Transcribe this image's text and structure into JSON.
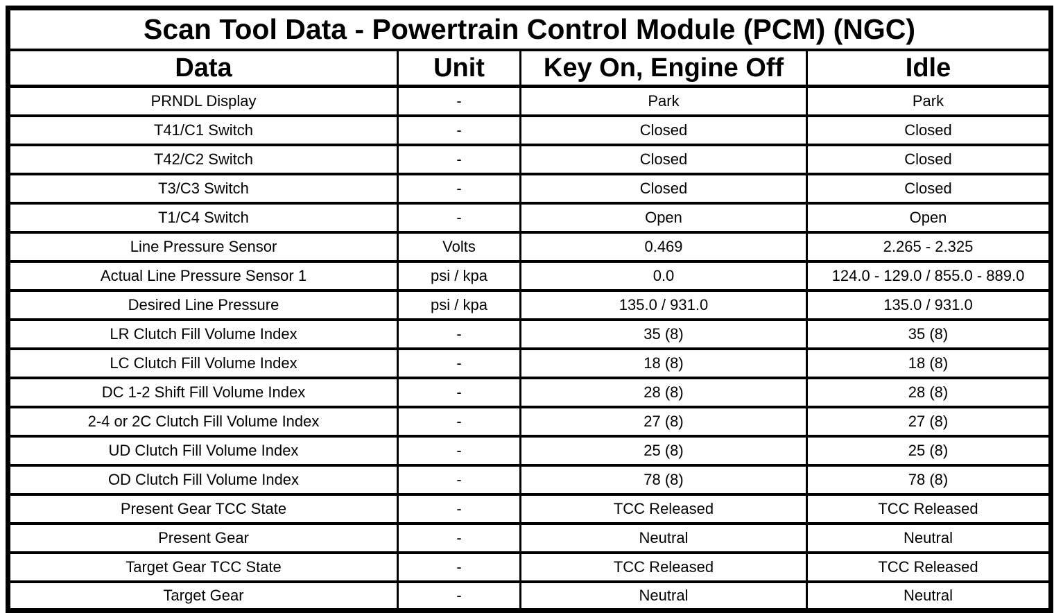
{
  "title": "Scan Tool Data - Powertrain Control Module (PCM) (NGC)",
  "table": {
    "columns": [
      "Data",
      "Unit",
      "Key On, Engine Off",
      "Idle"
    ],
    "rows": [
      {
        "data": "PRNDL Display",
        "unit": "-",
        "key_on_engine_off": "Park",
        "idle": "Park"
      },
      {
        "data": "T41/C1 Switch",
        "unit": "-",
        "key_on_engine_off": "Closed",
        "idle": "Closed"
      },
      {
        "data": "T42/C2 Switch",
        "unit": "-",
        "key_on_engine_off": "Closed",
        "idle": "Closed"
      },
      {
        "data": "T3/C3 Switch",
        "unit": "-",
        "key_on_engine_off": "Closed",
        "idle": "Closed"
      },
      {
        "data": "T1/C4 Switch",
        "unit": "-",
        "key_on_engine_off": "Open",
        "idle": "Open"
      },
      {
        "data": "Line Pressure Sensor",
        "unit": "Volts",
        "key_on_engine_off": "0.469",
        "idle": "2.265 - 2.325"
      },
      {
        "data": "Actual Line Pressure Sensor 1",
        "unit": "psi / kpa",
        "key_on_engine_off": "0.0",
        "idle": "124.0 - 129.0 / 855.0 - 889.0"
      },
      {
        "data": "Desired Line Pressure",
        "unit": "psi / kpa",
        "key_on_engine_off": "135.0 / 931.0",
        "idle": "135.0 / 931.0"
      },
      {
        "data": "LR Clutch Fill Volume Index",
        "unit": "-",
        "key_on_engine_off": "35 (8)",
        "idle": "35 (8)"
      },
      {
        "data": "LC Clutch Fill Volume Index",
        "unit": "-",
        "key_on_engine_off": "18 (8)",
        "idle": "18 (8)"
      },
      {
        "data": "DC 1-2 Shift Fill Volume Index",
        "unit": "-",
        "key_on_engine_off": "28 (8)",
        "idle": "28 (8)"
      },
      {
        "data": "2-4 or 2C Clutch Fill Volume Index",
        "unit": "-",
        "key_on_engine_off": "27 (8)",
        "idle": "27 (8)"
      },
      {
        "data": "UD Clutch Fill Volume Index",
        "unit": "-",
        "key_on_engine_off": "25 (8)",
        "idle": "25 (8)"
      },
      {
        "data": "OD Clutch Fill Volume Index",
        "unit": "-",
        "key_on_engine_off": "78 (8)",
        "idle": "78 (8)"
      },
      {
        "data": "Present Gear TCC State",
        "unit": "-",
        "key_on_engine_off": "TCC Released",
        "idle": "TCC Released"
      },
      {
        "data": "Present Gear",
        "unit": "-",
        "key_on_engine_off": "Neutral",
        "idle": "Neutral"
      },
      {
        "data": "Target Gear TCC State",
        "unit": "-",
        "key_on_engine_off": "TCC Released",
        "idle": "TCC Released"
      },
      {
        "data": "Target Gear",
        "unit": "-",
        "key_on_engine_off": "Neutral",
        "idle": "Neutral"
      }
    ]
  },
  "colors": {
    "border": "#000000",
    "background": "#ffffff",
    "text": "#000000"
  }
}
